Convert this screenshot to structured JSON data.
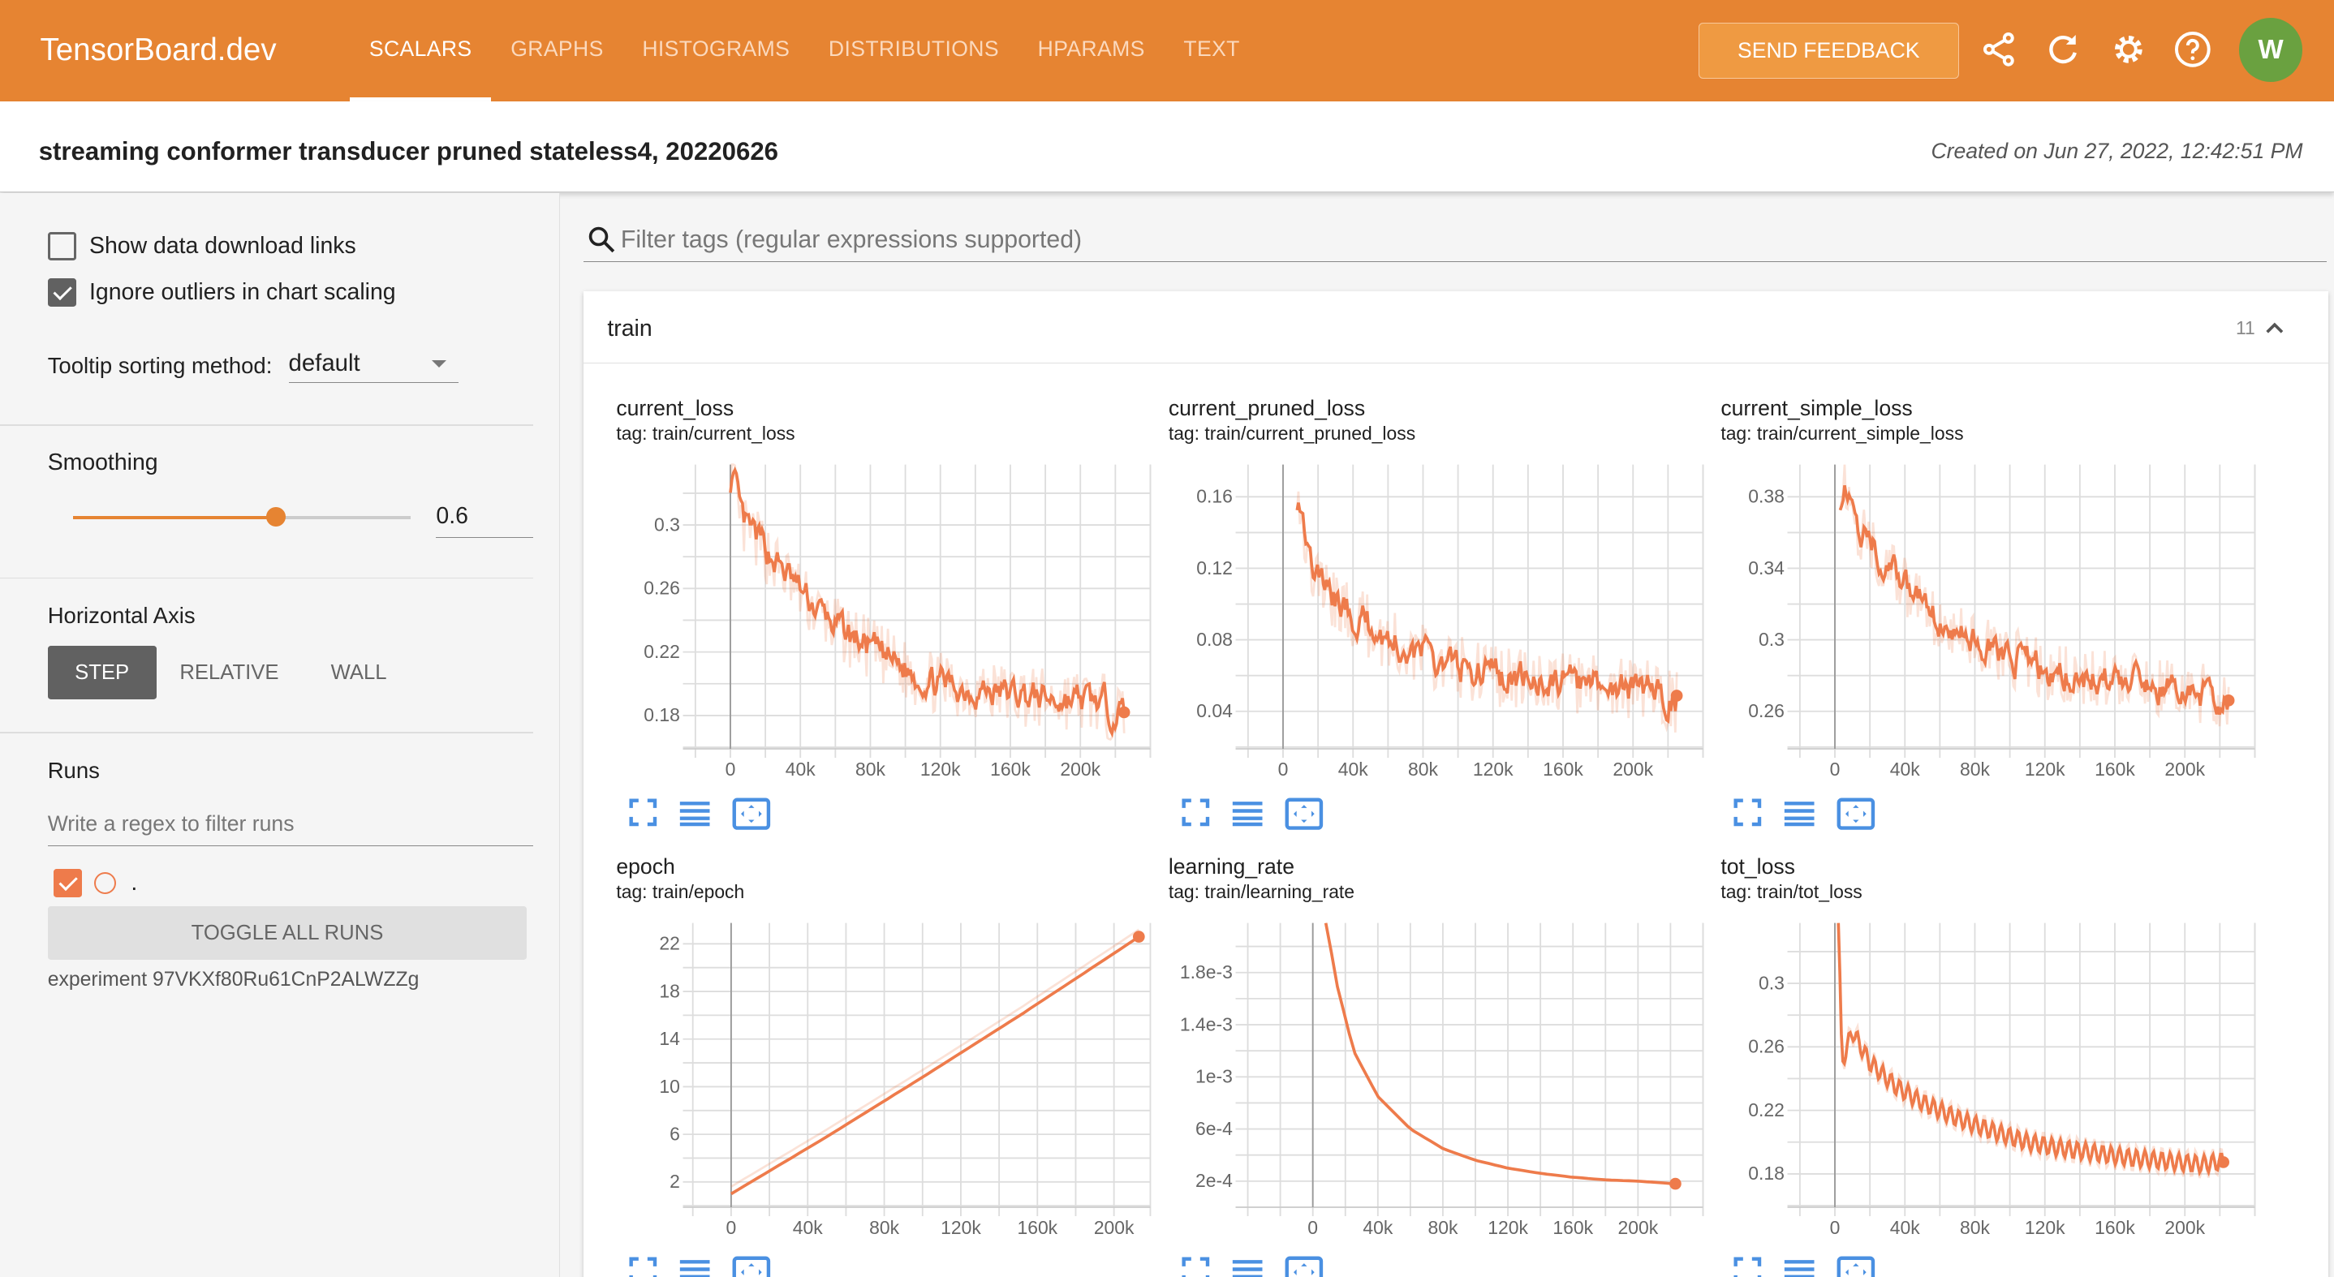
{
  "header": {
    "brand": "TensorBoard.dev",
    "tabs": [
      "SCALARS",
      "GRAPHS",
      "HISTOGRAMS",
      "DISTRIBUTIONS",
      "HPARAMS",
      "TEXT"
    ],
    "active_tab": "SCALARS",
    "feedback": "SEND FEEDBACK",
    "avatar": "W",
    "icons": [
      "share-icon",
      "refresh-icon",
      "settings-icon",
      "help-icon"
    ]
  },
  "experiment": {
    "title": "streaming conformer transducer pruned stateless4, 20220626",
    "created": "Created on Jun 27, 2022, 12:42:51 PM"
  },
  "sidebar": {
    "show_links": "Show data download links",
    "show_links_checked": false,
    "ignore_outliers": "Ignore outliers in chart scaling",
    "ignore_outliers_checked": true,
    "tooltip_label": "Tooltip sorting method:",
    "tooltip_value": "default",
    "smoothing_label": "Smoothing",
    "smoothing_value": "0.6",
    "haxis_label": "Horizontal Axis",
    "haxis_options": [
      "STEP",
      "RELATIVE",
      "WALL"
    ],
    "haxis_selected": "STEP",
    "runs_label": "Runs",
    "runs_placeholder": "Write a regex to filter runs",
    "run_name": ".",
    "toggle_all": "TOGGLE ALL RUNS",
    "experiment_id": "experiment 97VKXf80Ru61CnP2ALWZZg"
  },
  "main": {
    "filter_placeholder": "Filter tags (regular expressions supported)",
    "group": "train",
    "group_count": "11"
  },
  "colors": {
    "accent": "#e68432",
    "run": "#ee7b4b",
    "icon_blue": "#4a90e2"
  },
  "chart_data": [
    {
      "type": "line",
      "title": "current_loss",
      "tag": "tag: train/current_loss",
      "xlim": [
        -22000,
        240000
      ],
      "ylim": [
        0.159,
        0.338
      ],
      "xticks": [
        0,
        40000,
        80000,
        120000,
        160000,
        200000
      ],
      "xtick_labels": [
        "0",
        "40k",
        "80k",
        "120k",
        "160k",
        "200k"
      ],
      "yticks": [
        0.18,
        0.22,
        0.26,
        0.3
      ],
      "ytick_labels": [
        "0.18",
        "0.22",
        "0.26",
        "0.3"
      ],
      "x": [
        0,
        5000,
        15000,
        30000,
        45000,
        60000,
        75000,
        90000,
        105000,
        120000,
        135000,
        150000,
        165000,
        180000,
        195000,
        210000,
        225000
      ],
      "y": [
        0.34,
        0.3,
        0.29,
        0.27,
        0.25,
        0.235,
        0.225,
        0.215,
        0.205,
        0.2,
        0.197,
        0.195,
        0.193,
        0.19,
        0.19,
        0.188,
        0.18
      ],
      "smoothing": 0.6
    },
    {
      "type": "line",
      "title": "current_pruned_loss",
      "tag": "tag: train/current_pruned_loss",
      "xlim": [
        -22000,
        240000
      ],
      "ylim": [
        0.019,
        0.178
      ],
      "xticks": [
        0,
        40000,
        80000,
        120000,
        160000,
        200000
      ],
      "xtick_labels": [
        "0",
        "40k",
        "80k",
        "120k",
        "160k",
        "200k"
      ],
      "yticks": [
        0.04,
        0.08,
        0.12,
        0.16
      ],
      "ytick_labels": [
        "0.04",
        "0.08",
        "0.12",
        "0.16"
      ],
      "x": [
        8000,
        15000,
        30000,
        45000,
        60000,
        75000,
        90000,
        105000,
        120000,
        135000,
        150000,
        165000,
        180000,
        195000,
        210000,
        225000
      ],
      "y": [
        0.17,
        0.12,
        0.1,
        0.09,
        0.08,
        0.073,
        0.068,
        0.064,
        0.06,
        0.058,
        0.056,
        0.055,
        0.054,
        0.053,
        0.052,
        0.045
      ],
      "smoothing": 0.6
    },
    {
      "type": "line",
      "title": "current_simple_loss",
      "tag": "tag: train/current_simple_loss",
      "xlim": [
        -22000,
        240000
      ],
      "ylim": [
        0.239,
        0.398
      ],
      "xticks": [
        0,
        40000,
        80000,
        120000,
        160000,
        200000
      ],
      "xtick_labels": [
        "0",
        "40k",
        "80k",
        "120k",
        "160k",
        "200k"
      ],
      "yticks": [
        0.26,
        0.3,
        0.34,
        0.38
      ],
      "ytick_labels": [
        "0.26",
        "0.3",
        "0.34",
        "0.38"
      ],
      "x": [
        3000,
        15000,
        30000,
        45000,
        60000,
        75000,
        90000,
        105000,
        120000,
        135000,
        150000,
        165000,
        180000,
        195000,
        210000,
        225000
      ],
      "y": [
        0.39,
        0.36,
        0.34,
        0.325,
        0.31,
        0.3,
        0.293,
        0.288,
        0.283,
        0.28,
        0.278,
        0.276,
        0.274,
        0.272,
        0.27,
        0.265
      ],
      "smoothing": 0.6
    },
    {
      "type": "line",
      "title": "epoch",
      "tag": "tag: train/epoch",
      "xlim": [
        -20500,
        219000
      ],
      "ylim": [
        -0.125,
        23.75
      ],
      "xticks": [
        0,
        40000,
        80000,
        120000,
        160000,
        200000
      ],
      "xtick_labels": [
        "0",
        "40k",
        "80k",
        "120k",
        "160k",
        "200k"
      ],
      "yticks": [
        2,
        6,
        10,
        14,
        18,
        22
      ],
      "ytick_labels": [
        "2",
        "6",
        "10",
        "14",
        "18",
        "22"
      ],
      "x": [
        0,
        50000,
        100000,
        150000,
        200000,
        213000
      ],
      "y": [
        1,
        5.8,
        10.8,
        15.9,
        21.2,
        22.6
      ],
      "smoothing": 0.6
    },
    {
      "type": "line",
      "title": "learning_rate",
      "tag": "tag: train/learning_rate",
      "xlim": [
        -42000,
        240000
      ],
      "ylim": [
        0,
        0.00218
      ],
      "xticks": [
        0,
        40000,
        80000,
        120000,
        160000,
        200000
      ],
      "xtick_labels": [
        "0",
        "40k",
        "80k",
        "120k",
        "160k",
        "200k"
      ],
      "yticks": [
        0.0002,
        0.0006,
        0.001,
        0.0014,
        0.0018
      ],
      "ytick_labels": [
        "2e-4",
        "6e-4",
        "1e-3",
        "1.4e-3",
        "1.8e-3"
      ],
      "x": [
        8000,
        15000,
        25000,
        40000,
        60000,
        80000,
        100000,
        120000,
        140000,
        160000,
        180000,
        200000,
        223000
      ],
      "y": [
        0.0022,
        0.0017,
        0.0012,
        0.00085,
        0.0006,
        0.00045,
        0.00036,
        0.0003,
        0.00026,
        0.00023,
        0.00021,
        0.0002,
        0.00018
      ],
      "smoothing": 0.6
    },
    {
      "type": "line",
      "title": "tot_loss",
      "tag": "tag: train/tot_loss",
      "xlim": [
        -22000,
        240000
      ],
      "ylim": [
        0.159,
        0.338
      ],
      "xticks": [
        0,
        40000,
        80000,
        120000,
        160000,
        200000
      ],
      "xtick_labels": [
        "0",
        "40k",
        "80k",
        "120k",
        "160k",
        "200k"
      ],
      "yticks": [
        0.18,
        0.22,
        0.26,
        0.3
      ],
      "ytick_labels": [
        "0.18",
        "0.22",
        "0.26",
        "0.3"
      ],
      "x": [
        2000,
        4000,
        10000,
        20000,
        35000,
        50000,
        70000,
        90000,
        110000,
        130000,
        150000,
        170000,
        190000,
        210000,
        222000
      ],
      "y": [
        0.34,
        0.25,
        0.27,
        0.25,
        0.235,
        0.225,
        0.215,
        0.207,
        0.2,
        0.196,
        0.193,
        0.19,
        0.188,
        0.186,
        0.188
      ],
      "smoothing": 0.6
    }
  ]
}
